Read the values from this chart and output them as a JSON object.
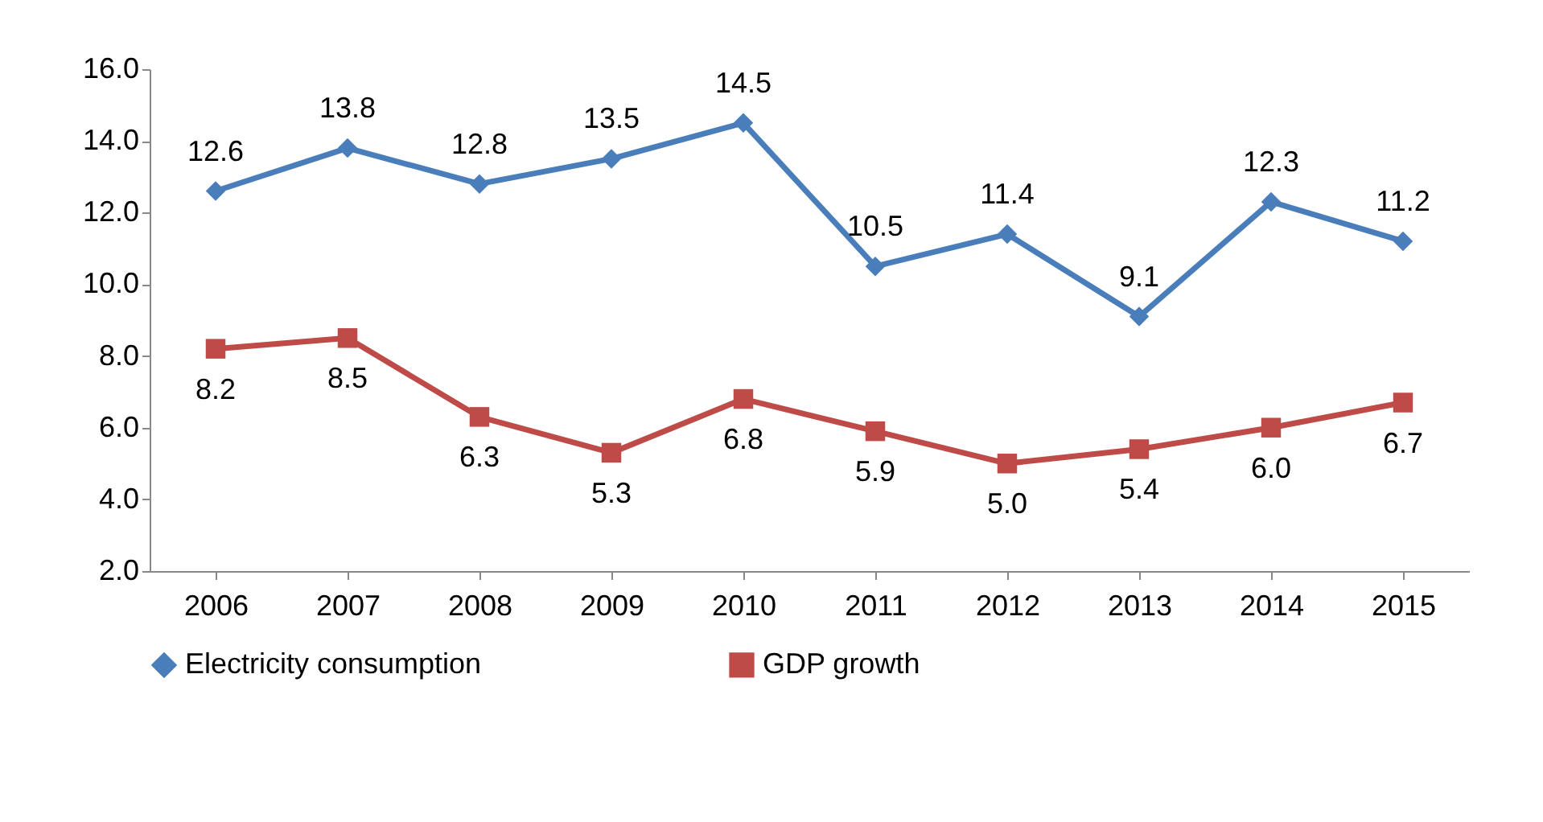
{
  "chart_data": {
    "type": "line",
    "categories": [
      "2006",
      "2007",
      "2008",
      "2009",
      "2010",
      "2011",
      "2012",
      "2013",
      "2014",
      "2015"
    ],
    "series": [
      {
        "name": "Electricity consumption",
        "color": "#4a7ebb",
        "marker": "diamond",
        "values": [
          12.6,
          13.8,
          12.8,
          13.5,
          14.5,
          10.5,
          11.4,
          9.1,
          12.3,
          11.2
        ],
        "value_labels": [
          "12.6",
          "13.8",
          "12.8",
          "13.5",
          "14.5",
          "10.5",
          "11.4",
          "9.1",
          "12.3",
          "11.2"
        ]
      },
      {
        "name": "GDP growth",
        "color": "#be4b48",
        "marker": "square",
        "values": [
          8.2,
          8.5,
          6.3,
          5.3,
          6.8,
          5.9,
          5.0,
          5.4,
          6.0,
          6.7
        ],
        "value_labels": [
          "8.2",
          "8.5",
          "6.3",
          "5.3",
          "6.8",
          "5.9",
          "5.0",
          "5.4",
          "6.0",
          "6.7"
        ]
      }
    ],
    "ylim": [
      2,
      16
    ],
    "yticks": [
      {
        "value": 2,
        "label": "2.0"
      },
      {
        "value": 4,
        "label": "4.0"
      },
      {
        "value": 6,
        "label": "6.0"
      },
      {
        "value": 8,
        "label": "8.0"
      },
      {
        "value": 10,
        "label": "10.0"
      },
      {
        "value": 12,
        "label": "12.0"
      },
      {
        "value": 14,
        "label": "14.0"
      },
      {
        "value": 16,
        "label": "16.0"
      }
    ],
    "grid": false,
    "legend": "bottom"
  }
}
